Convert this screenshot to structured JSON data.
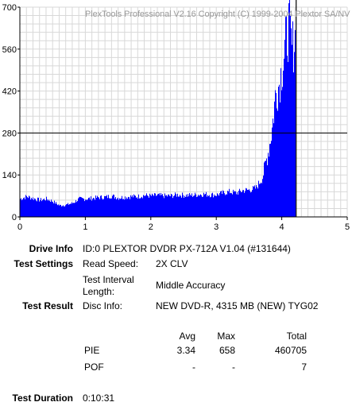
{
  "chart_data": {
    "type": "bar",
    "watermark": "PlexTools Professional V2.16 Copyright (C) 1999-2004 Plextor SA/NV",
    "xlim": [
      0,
      5
    ],
    "ylim": [
      0,
      700
    ],
    "x_ticks": [
      "0",
      "1",
      "2",
      "3",
      "4",
      "5"
    ],
    "y_ticks": [
      "0",
      "140",
      "280",
      "420",
      "560",
      "700"
    ],
    "grid": true,
    "reference_line_y": 280,
    "marker_line_x": 4.22,
    "bar_color": "#0000ff",
    "series": [
      {
        "x": [
          0.0,
          0.1,
          0.2,
          0.3,
          0.4,
          0.5,
          0.6,
          0.7,
          0.8,
          0.9,
          1.0,
          1.1,
          1.2,
          1.3,
          1.4,
          1.5,
          1.6,
          1.7,
          1.8,
          1.9,
          2.0,
          2.1,
          2.2,
          2.3,
          2.4,
          2.5,
          2.6,
          2.7,
          2.8,
          2.9,
          3.0,
          3.1,
          3.2,
          3.3,
          3.4,
          3.5,
          3.6,
          3.7,
          3.8,
          3.85,
          3.9,
          3.95,
          4.0,
          4.05,
          4.1,
          4.15,
          4.2,
          4.22
        ],
        "values": [
          60,
          68,
          62,
          56,
          60,
          52,
          38,
          40,
          46,
          60,
          60,
          62,
          65,
          66,
          70,
          64,
          66,
          68,
          68,
          72,
          70,
          72,
          70,
          70,
          74,
          72,
          72,
          74,
          76,
          74,
          74,
          80,
          84,
          80,
          88,
          90,
          96,
          130,
          230,
          300,
          410,
          440,
          500,
          570,
          640,
          560,
          600,
          0
        ]
      }
    ]
  },
  "info": {
    "drive_label": "Drive Info",
    "drive_value": "ID:0 PLEXTOR DVDR PX-712A V1.04 (#131644)",
    "settings_label": "Test Settings",
    "read_speed_label": "Read Speed:",
    "read_speed_value": "2X CLV",
    "interval_label_1": "Test Interval",
    "interval_label_2": "Length:",
    "interval_value": "Middle Accuracy",
    "result_label": "Test Result",
    "disc_label": "Disc Info:",
    "disc_value": "NEW DVD-R, 4315 MB (NEW) TYG02"
  },
  "stats": {
    "headers": {
      "avg": "Avg",
      "max": "Max",
      "total": "Total"
    },
    "rows": [
      {
        "name": "PIE",
        "avg": "3.34",
        "max": "658",
        "total": "460705"
      },
      {
        "name": "POF",
        "avg": "-",
        "max": "-",
        "total": "7"
      }
    ]
  },
  "duration": {
    "label": "Test Duration",
    "value": "0:10:31"
  }
}
